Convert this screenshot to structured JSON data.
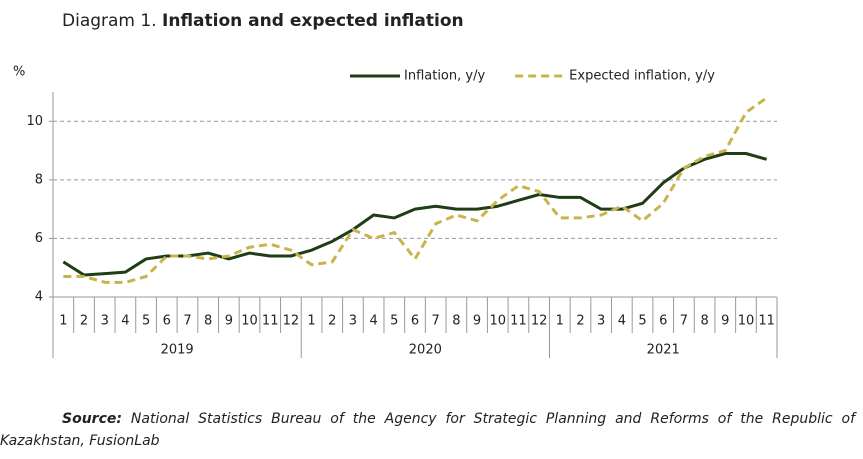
{
  "chart_data": {
    "type": "line",
    "title_prefix": "Diagram 1.",
    "title": "Inflation and expected inflation",
    "y_label": "%",
    "groups": [
      {
        "name": "2019",
        "categories": [
          "1",
          "2",
          "3",
          "4",
          "5",
          "6",
          "7",
          "8",
          "9",
          "10",
          "11",
          "12"
        ]
      },
      {
        "name": "2020",
        "categories": [
          "1",
          "2",
          "3",
          "4",
          "5",
          "6",
          "7",
          "8",
          "9",
          "10",
          "11",
          "12"
        ]
      },
      {
        "name": "2021",
        "categories": [
          "1",
          "2",
          "3",
          "4",
          "5",
          "6",
          "7",
          "8",
          "9",
          "10",
          "11"
        ]
      }
    ],
    "series": [
      {
        "name": "Inflation, y/y",
        "color": "#1f3d16",
        "dash": false,
        "values": [
          5.2,
          4.75,
          4.8,
          4.85,
          5.3,
          5.4,
          5.4,
          5.5,
          5.3,
          5.5,
          5.4,
          5.4,
          5.6,
          5.9,
          6.3,
          6.8,
          6.7,
          7.0,
          7.1,
          7.0,
          7.0,
          7.1,
          7.3,
          7.5,
          7.4,
          7.4,
          7.0,
          7.0,
          7.2,
          7.9,
          8.4,
          8.7,
          8.9,
          8.9,
          8.7
        ]
      },
      {
        "name": "Expected inflation, y/y",
        "color": "#c9b44c",
        "dash": true,
        "values": [
          4.7,
          4.7,
          4.5,
          4.5,
          4.7,
          5.4,
          5.4,
          5.3,
          5.4,
          5.7,
          5.8,
          5.6,
          5.1,
          5.2,
          6.3,
          6.0,
          6.2,
          5.3,
          6.5,
          6.8,
          6.6,
          7.3,
          7.8,
          7.6,
          6.7,
          6.7,
          6.8,
          7.1,
          6.6,
          7.2,
          8.4,
          8.8,
          9.0,
          10.3,
          10.8
        ]
      }
    ],
    "ylim": [
      4,
      11
    ],
    "yticks": [
      4,
      6,
      8,
      10
    ],
    "grid": true,
    "legend": "top",
    "source_label": "Source:",
    "source": "National Statistics Bureau of the Agency for Strategic Planning and Reforms of the Republic of Kazakhstan, FusionLab"
  }
}
